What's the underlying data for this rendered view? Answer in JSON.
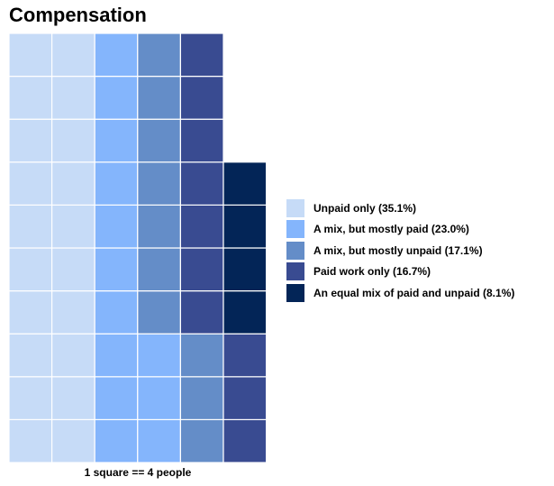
{
  "chart_data": {
    "type": "waffle",
    "title": "Compensation",
    "caption": "1 square == 4 people",
    "rows": 10,
    "columns": 6,
    "fill_order": "column-major, bottom-to-top",
    "legend_position": "right",
    "categories": [
      {
        "label": "Unpaid only (35.1%)",
        "squares": 20,
        "color": "#c6dbf7"
      },
      {
        "label": "A mix, but mostly paid (23.0%)",
        "squares": 13,
        "color": "#84b5fc"
      },
      {
        "label": "A mix, but mostly unpaid (17.1%)",
        "squares": 10,
        "color": "#648dc8"
      },
      {
        "label": "Paid work only (16.7%)",
        "squares": 10,
        "color": "#394b91"
      },
      {
        "label": "An equal mix of paid and unpaid (8.1%)",
        "squares": 4,
        "color": "#032557"
      }
    ]
  }
}
